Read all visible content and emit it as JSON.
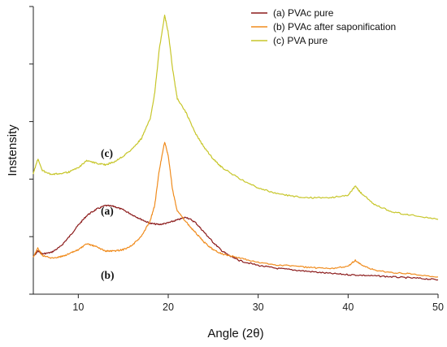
{
  "chart_data": {
    "type": "line",
    "title": "",
    "xlabel": "Angle (2θ)",
    "ylabel": "Instensity",
    "xlim": [
      5,
      50
    ],
    "ylim": [
      0,
      100
    ],
    "x_ticks": [
      10,
      20,
      30,
      40,
      50
    ],
    "y_ticks_labeled": false,
    "grid": false,
    "legend_position": "top-right",
    "series": [
      {
        "name": "(a) PVAc pure",
        "color": "#8b1a1a",
        "points": [
          [
            5,
            13
          ],
          [
            5.5,
            15
          ],
          [
            6,
            14
          ],
          [
            7,
            14.5
          ],
          [
            8,
            16.5
          ],
          [
            9,
            20
          ],
          [
            10,
            24
          ],
          [
            11,
            27.5
          ],
          [
            12,
            29.5
          ],
          [
            13,
            30.8
          ],
          [
            14,
            30.5
          ],
          [
            15,
            29.3
          ],
          [
            16,
            27.6
          ],
          [
            17,
            26
          ],
          [
            18,
            24.6
          ],
          [
            19,
            24.2
          ],
          [
            20,
            24.8
          ],
          [
            21,
            25.8
          ],
          [
            22,
            26.8
          ],
          [
            23,
            25
          ],
          [
            24,
            21.5
          ],
          [
            25,
            18
          ],
          [
            26,
            15
          ],
          [
            27,
            13
          ],
          [
            28,
            11.6
          ],
          [
            30,
            10
          ],
          [
            32,
            9
          ],
          [
            34,
            8.4
          ],
          [
            36,
            7.8
          ],
          [
            38,
            7.2
          ],
          [
            40,
            6.8
          ],
          [
            42,
            6.5
          ],
          [
            44,
            6.2
          ],
          [
            46,
            5.8
          ],
          [
            48,
            5.5
          ],
          [
            50,
            5
          ]
        ]
      },
      {
        "name": "(b) PVAc after saponification",
        "color": "#f08c1e",
        "points": [
          [
            5,
            13
          ],
          [
            5.5,
            16
          ],
          [
            6,
            13.5
          ],
          [
            7,
            12.5
          ],
          [
            8,
            13
          ],
          [
            9,
            14
          ],
          [
            10,
            15.5
          ],
          [
            11,
            17.5
          ],
          [
            12,
            16.5
          ],
          [
            13,
            15
          ],
          [
            14,
            15
          ],
          [
            15,
            15.5
          ],
          [
            16,
            17
          ],
          [
            17,
            20
          ],
          [
            18,
            25.5
          ],
          [
            18.5,
            31
          ],
          [
            19,
            43
          ],
          [
            19.6,
            53
          ],
          [
            20,
            48
          ],
          [
            20.5,
            36
          ],
          [
            21,
            29
          ],
          [
            22,
            25
          ],
          [
            23,
            21.5
          ],
          [
            24,
            18
          ],
          [
            25,
            15.5
          ],
          [
            26,
            14
          ],
          [
            28,
            12.5
          ],
          [
            30,
            11
          ],
          [
            32,
            10.2
          ],
          [
            34,
            9.8
          ],
          [
            36,
            9.2
          ],
          [
            38,
            8.8
          ],
          [
            40,
            9.8
          ],
          [
            40.8,
            11.8
          ],
          [
            41.5,
            10
          ],
          [
            43,
            8.3
          ],
          [
            45,
            7.5
          ],
          [
            47,
            7
          ],
          [
            50,
            6
          ]
        ]
      },
      {
        "name": "(c) PVA pure",
        "color": "#c7c62a",
        "points": [
          [
            5,
            42
          ],
          [
            5.5,
            47
          ],
          [
            6,
            43
          ],
          [
            7,
            41.5
          ],
          [
            8,
            42
          ],
          [
            9,
            42.5
          ],
          [
            10,
            44
          ],
          [
            11,
            46.5
          ],
          [
            12,
            45.5
          ],
          [
            13,
            45
          ],
          [
            14,
            46
          ],
          [
            15,
            48
          ],
          [
            16,
            50.5
          ],
          [
            17,
            54
          ],
          [
            18,
            61
          ],
          [
            18.5,
            70
          ],
          [
            19,
            85
          ],
          [
            19.6,
            97
          ],
          [
            20,
            91
          ],
          [
            20.5,
            78
          ],
          [
            21,
            68
          ],
          [
            22,
            63
          ],
          [
            23,
            56
          ],
          [
            24,
            51
          ],
          [
            25,
            47
          ],
          [
            26,
            44
          ],
          [
            28,
            40
          ],
          [
            30,
            37
          ],
          [
            32,
            35
          ],
          [
            34,
            34
          ],
          [
            36,
            33.5
          ],
          [
            38,
            33.5
          ],
          [
            40,
            34.5
          ],
          [
            40.8,
            37.5
          ],
          [
            41.5,
            35
          ],
          [
            43,
            31
          ],
          [
            45,
            28.5
          ],
          [
            47,
            27.5
          ],
          [
            50,
            26
          ]
        ]
      }
    ],
    "annotations": [
      "(c)",
      "(a)",
      "(b)"
    ]
  }
}
